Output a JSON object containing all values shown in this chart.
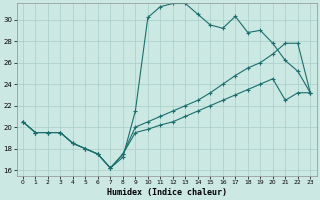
{
  "xlabel": "Humidex (Indice chaleur)",
  "bg_color": "#cce8e2",
  "grid_color": "#a8cec8",
  "line_color": "#1a6e6e",
  "xlim_min": -0.5,
  "xlim_max": 23.5,
  "ylim_min": 15.5,
  "ylim_max": 31.5,
  "xticks": [
    0,
    1,
    2,
    3,
    4,
    5,
    6,
    7,
    8,
    9,
    10,
    11,
    12,
    13,
    14,
    15,
    16,
    17,
    18,
    19,
    20,
    21,
    22,
    23
  ],
  "yticks": [
    16,
    18,
    20,
    22,
    24,
    26,
    28,
    30
  ],
  "line_max_x": [
    0,
    1,
    2,
    3,
    4,
    5,
    6,
    7,
    8,
    9,
    10,
    11,
    12,
    13,
    14,
    15,
    16,
    17,
    18,
    19,
    20,
    21,
    22,
    23
  ],
  "line_max_y": [
    20.5,
    19.5,
    19.5,
    19.5,
    18.5,
    18.0,
    17.5,
    16.2,
    17.2,
    21.5,
    30.2,
    31.2,
    31.5,
    31.5,
    30.5,
    29.5,
    29.2,
    30.3,
    28.8,
    29.0,
    27.8,
    26.2,
    25.2,
    23.2
  ],
  "line_mean_x": [
    0,
    1,
    2,
    3,
    4,
    5,
    6,
    7,
    8,
    9,
    10,
    11,
    12,
    13,
    14,
    15,
    16,
    17,
    18,
    19,
    20,
    21,
    22,
    23
  ],
  "line_mean_y": [
    20.5,
    19.5,
    19.5,
    19.5,
    18.5,
    18.0,
    17.5,
    16.2,
    17.5,
    20.0,
    20.5,
    21.0,
    21.5,
    22.0,
    22.5,
    23.2,
    24.0,
    24.8,
    25.5,
    26.0,
    26.8,
    27.8,
    27.8,
    23.2
  ],
  "line_min_x": [
    0,
    1,
    2,
    3,
    4,
    5,
    6,
    7,
    8,
    9,
    10,
    11,
    12,
    13,
    14,
    15,
    16,
    17,
    18,
    19,
    20,
    21,
    22,
    23
  ],
  "line_min_y": [
    20.5,
    19.5,
    19.5,
    19.5,
    18.5,
    18.0,
    17.5,
    16.2,
    17.5,
    19.5,
    19.8,
    20.2,
    20.5,
    21.0,
    21.5,
    22.0,
    22.5,
    23.0,
    23.5,
    24.0,
    24.5,
    22.5,
    23.2,
    23.2
  ]
}
